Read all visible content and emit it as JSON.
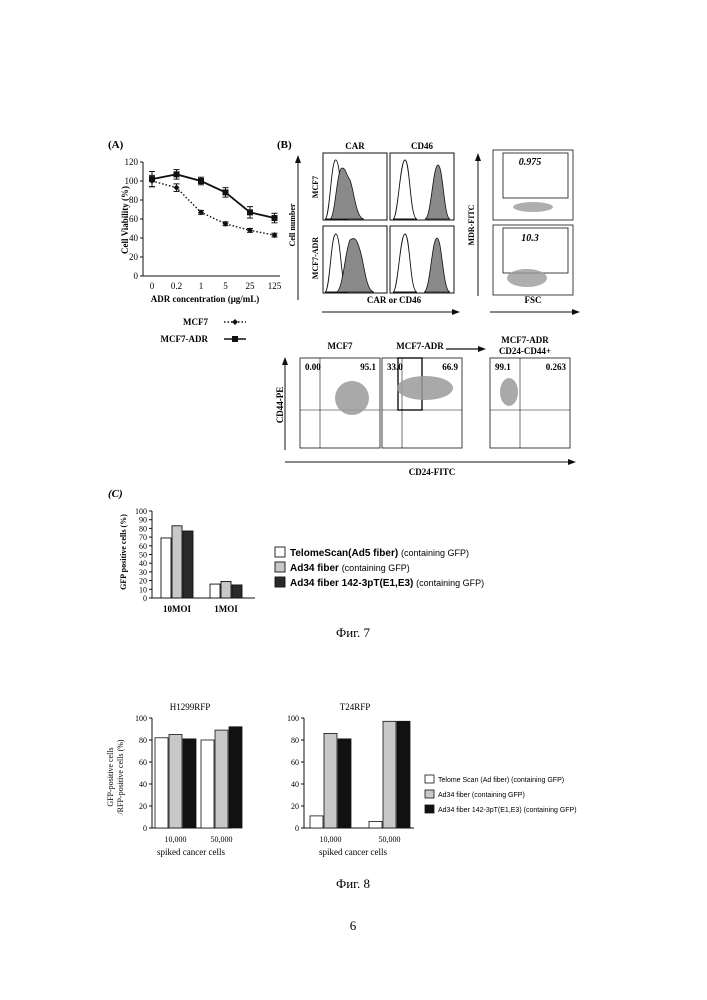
{
  "figure7": {
    "caption": "Фиг. 7",
    "panelA": {
      "label": "(A)",
      "chart_data": {
        "type": "line",
        "categories": [
          "0",
          "0.2",
          "1",
          "5",
          "25",
          "125"
        ],
        "series": [
          {
            "name": "MCF7",
            "values": [
              100,
              93,
              67,
              55,
              48,
              43
            ],
            "errors": [
              6,
              4,
              2,
              2,
              2,
              2
            ],
            "style": "dotted",
            "marker": "diamond"
          },
          {
            "name": "MCF7-ADR",
            "values": [
              102,
              107,
              100,
              88,
              67,
              61
            ],
            "errors": [
              8,
              5,
              4,
              5,
              6,
              5
            ],
            "style": "solid",
            "marker": "square"
          }
        ],
        "ylim": [
          0,
          120
        ],
        "yticks": [
          "0",
          "20",
          "40",
          "60",
          "80",
          "100",
          "120"
        ],
        "xlabel": "ADR concentration (μg/mL)",
        "ylabel": "Cell Viability (%)",
        "legend": "bottom"
      }
    },
    "panelB": {
      "label": "(B)",
      "hist_cols": [
        "CAR",
        "CD46"
      ],
      "hist_rows": [
        "MCF7",
        "MCF7-ADR"
      ],
      "hist_ylabel": "Cell number",
      "hist_xlabel": "CAR or CD46",
      "mdr_values": [
        "0.975",
        "10.3"
      ],
      "mdr_ylabel": "MDR-FITC",
      "mdr_xlabel": "FSC",
      "scatter_titles": [
        "MCF7",
        "MCF7-ADR",
        "MCF7-ADR"
      ],
      "scatter_title_line2": "CD24-CD44+",
      "scatter_left": [
        "0.00",
        "33.0",
        "99.1"
      ],
      "scatter_right": [
        "95.1",
        "66.9",
        "0.263"
      ],
      "scatter_ylabel": "CD44-PE",
      "scatter_xlabel": "CD24-FITC"
    },
    "panelC": {
      "label": "(C)",
      "chart_data": {
        "type": "bar",
        "categories": [
          "10MOI",
          "1MOI"
        ],
        "series": [
          {
            "name": "TelomeScan(Ad5 fiber)",
            "values": [
              69,
              16
            ],
            "color": "#ffffff"
          },
          {
            "name": "Ad34 fiber",
            "values": [
              83,
              19
            ],
            "color": "#c8c8c8"
          },
          {
            "name": "Ad34 fiber 142-3pT(E1,E3)",
            "values": [
              77,
              15
            ],
            "color": "#2a2a2a"
          }
        ],
        "ylim": [
          0,
          100
        ],
        "yticks": [
          "0",
          "10",
          "20",
          "30",
          "40",
          "50",
          "60",
          "70",
          "80",
          "90",
          "100"
        ],
        "ylabel": "GFP positive cells (%)",
        "legend_suffix": "(containing GFP)"
      }
    }
  },
  "figure8": {
    "caption": "Фиг. 8",
    "ylabel_line1": "GFP-positive cells",
    "ylabel_line2": "/RFP-positive cells (%)",
    "xlabel": "spiked cancer cells",
    "legend_suffix": "(containing GFP)",
    "chart_data": [
      {
        "type": "bar",
        "title": "H1299RFP",
        "categories": [
          "10,000",
          "50,000"
        ],
        "series": [
          {
            "name": "Telome Scan (Ad fiber)",
            "values": [
              82,
              80
            ],
            "color": "#ffffff"
          },
          {
            "name": "Ad34 fiber",
            "values": [
              85,
              89
            ],
            "color": "#c8c8c8"
          },
          {
            "name": "Ad34 fiber 142-3pT(E1,E3)",
            "values": [
              81,
              92
            ],
            "color": "#111111"
          }
        ],
        "ylim": [
          0,
          100
        ],
        "yticks": [
          "0",
          "20",
          "40",
          "60",
          "80",
          "100"
        ]
      },
      {
        "type": "bar",
        "title": "T24RFP",
        "categories": [
          "10,000",
          "50,000"
        ],
        "series": [
          {
            "name": "Telome Scan (Ad fiber)",
            "values": [
              11,
              6
            ],
            "color": "#ffffff"
          },
          {
            "name": "Ad34 fiber",
            "values": [
              86,
              97
            ],
            "color": "#c8c8c8"
          },
          {
            "name": "Ad34 fiber 142-3pT(E1,E3)",
            "values": [
              81,
              97
            ],
            "color": "#111111"
          }
        ],
        "ylim": [
          0,
          100
        ],
        "yticks": [
          "0",
          "20",
          "40",
          "60",
          "80",
          "100"
        ]
      }
    ]
  },
  "page_number": "6"
}
